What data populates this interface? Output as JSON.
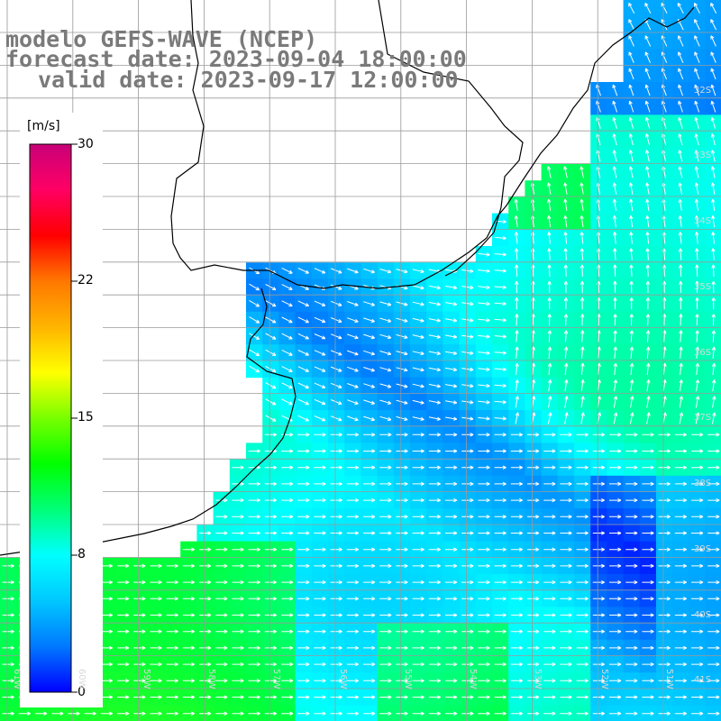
{
  "header": {
    "line1": "modelo GEFS-WAVE (NCEP)",
    "line2": "forecast date: 2023-09-04 18:00:00",
    "line3": "valid date: 2023-09-17 12:00:00"
  },
  "colorbar": {
    "unit": "[m/s]",
    "ticks": [
      "30",
      "22",
      "15",
      "8",
      "0"
    ],
    "colors": [
      "#0000ff",
      "#0078ff",
      "#00c8ff",
      "#00ffff",
      "#00ff78",
      "#00ff00",
      "#78ff00",
      "#ffff00",
      "#ffb400",
      "#ff7800",
      "#ff0000",
      "#ff0064",
      "#c80078"
    ]
  },
  "grid_labels": {
    "lat": [
      "32S",
      "33S",
      "34S",
      "35S",
      "36S",
      "37S",
      "38S",
      "39S",
      "40S",
      "41S"
    ],
    "lon": [
      "61W",
      "60W",
      "59W",
      "58W",
      "57W",
      "56W",
      "55W",
      "54W",
      "53W",
      "52W",
      "51W"
    ]
  },
  "map_colors": {
    "land": "#ffffff",
    "coast": "#000000",
    "grid": "#9a9a9a",
    "arrow": "#ffffff"
  }
}
